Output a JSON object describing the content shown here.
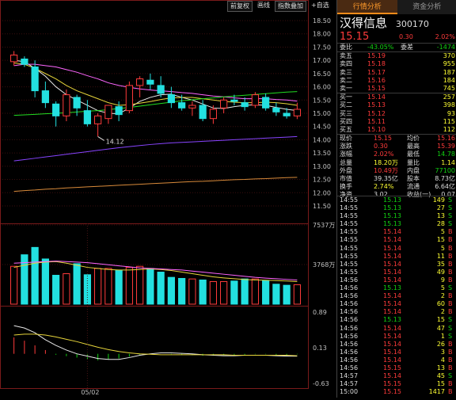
{
  "toolbar": {
    "btn_fq": "前复权",
    "btn_line": "画线",
    "btn_overlay": "指数叠加",
    "btn_fav": "+自选"
  },
  "tabs": [
    {
      "label": "行情分析"
    },
    {
      "label": "资金分析"
    }
  ],
  "stock": {
    "name": "汉得信息",
    "code": "300170",
    "price": "15.15",
    "change": "0.30",
    "pct": "2.02%"
  },
  "ratio": {
    "label1": "委比",
    "v1": "-43.05%",
    "label2": "委差",
    "v2": "-1474"
  },
  "sells": [
    {
      "label": "卖五",
      "price": "15.19",
      "vol": "370"
    },
    {
      "label": "卖四",
      "price": "15.18",
      "vol": "955"
    },
    {
      "label": "卖三",
      "price": "15.17",
      "vol": "187"
    },
    {
      "label": "卖二",
      "price": "15.16",
      "vol": "184"
    },
    {
      "label": "卖一",
      "price": "15.15",
      "vol": "745"
    }
  ],
  "buys": [
    {
      "label": "买一",
      "price": "15.14",
      "vol": "257"
    },
    {
      "label": "买二",
      "price": "15.13",
      "vol": "398"
    },
    {
      "label": "买三",
      "price": "15.12",
      "vol": "93"
    },
    {
      "label": "买四",
      "price": "15.11",
      "vol": "115"
    },
    {
      "label": "买五",
      "price": "15.10",
      "vol": "112"
    }
  ],
  "stats": [
    {
      "l1": "现价",
      "v1": "15.15",
      "c1": "red",
      "l2": "均价",
      "v2": "15.16",
      "c2": "red"
    },
    {
      "l1": "涨跌",
      "v1": "0.30",
      "c1": "red",
      "l2": "最高",
      "v2": "15.39",
      "c2": "red"
    },
    {
      "l1": "涨幅",
      "v1": "2.02%",
      "c1": "red",
      "l2": "最低",
      "v2": "14.78",
      "c2": "grn"
    },
    {
      "l1": "总量",
      "v1": "18.20万",
      "c1": "yel",
      "l2": "量比",
      "v2": "1.14",
      "c2": "yel"
    },
    {
      "l1": "外盘",
      "v1": "10.49万",
      "c1": "red",
      "l2": "内盘",
      "v2": "77100",
      "c2": "grn"
    },
    {
      "l1": "市值",
      "v1": "39.35亿",
      "c1": "wht",
      "l2": "股本",
      "v2": "8.73亿",
      "c2": "wht"
    },
    {
      "l1": "换手",
      "v1": "2.74%",
      "c1": "yel",
      "l2": "流通",
      "v2": "6.64亿",
      "c2": "wht"
    },
    {
      "l1": "净资",
      "v1": "3.02",
      "c1": "wht",
      "l2": "收益(一)",
      "v2": "0.07",
      "c2": "wht"
    }
  ],
  "ticks": [
    {
      "t": "14:55",
      "p": "15.13",
      "pc": "grn",
      "v": "149",
      "d": "S"
    },
    {
      "t": "14:55",
      "p": "15.13",
      "pc": "grn",
      "v": "27",
      "d": "S"
    },
    {
      "t": "14:55",
      "p": "15.13",
      "pc": "grn",
      "v": "13",
      "d": "S"
    },
    {
      "t": "14:55",
      "p": "15.13",
      "pc": "grn",
      "v": "28",
      "d": "S"
    },
    {
      "t": "14:55",
      "p": "15.14",
      "pc": "red",
      "v": "5",
      "d": "B"
    },
    {
      "t": "14:55",
      "p": "15.14",
      "pc": "red",
      "v": "15",
      "d": "B"
    },
    {
      "t": "14:55",
      "p": "15.14",
      "pc": "red",
      "v": "5",
      "d": "B"
    },
    {
      "t": "14:55",
      "p": "15.14",
      "pc": "red",
      "v": "11",
      "d": "B"
    },
    {
      "t": "14:55",
      "p": "15.14",
      "pc": "red",
      "v": "35",
      "d": "B"
    },
    {
      "t": "14:55",
      "p": "15.14",
      "pc": "red",
      "v": "49",
      "d": "B"
    },
    {
      "t": "14:56",
      "p": "15.14",
      "pc": "red",
      "v": "9",
      "d": "B"
    },
    {
      "t": "14:56",
      "p": "15.13",
      "pc": "grn",
      "v": "5",
      "d": "S"
    },
    {
      "t": "14:56",
      "p": "15.14",
      "pc": "red",
      "v": "2",
      "d": "B"
    },
    {
      "t": "14:56",
      "p": "15.14",
      "pc": "red",
      "v": "60",
      "d": "B"
    },
    {
      "t": "14:56",
      "p": "15.14",
      "pc": "red",
      "v": "2",
      "d": "B"
    },
    {
      "t": "14:56",
      "p": "15.13",
      "pc": "grn",
      "v": "15",
      "d": "S"
    },
    {
      "t": "14:56",
      "p": "15.14",
      "pc": "red",
      "v": "47",
      "d": "S"
    },
    {
      "t": "14:56",
      "p": "15.14",
      "pc": "red",
      "v": "1",
      "d": "S"
    },
    {
      "t": "14:56",
      "p": "15.14",
      "pc": "red",
      "v": "26",
      "d": "B"
    },
    {
      "t": "14:56",
      "p": "15.14",
      "pc": "red",
      "v": "3",
      "d": "B"
    },
    {
      "t": "14:56",
      "p": "15.14",
      "pc": "red",
      "v": "4",
      "d": "B"
    },
    {
      "t": "14:56",
      "p": "15.15",
      "pc": "red",
      "v": "13",
      "d": "B"
    },
    {
      "t": "14:57",
      "p": "15.14",
      "pc": "red",
      "v": "45",
      "d": "S"
    },
    {
      "t": "14:57",
      "p": "15.15",
      "pc": "red",
      "v": "15",
      "d": "B"
    },
    {
      "t": "15:00",
      "p": "15.15",
      "pc": "red",
      "v": "1417",
      "d": "B"
    }
  ],
  "chart_data": {
    "type": "candlestick",
    "price_axis": {
      "ticks": [
        "18.50",
        "18.00",
        "17.50",
        "17.00",
        "16.50",
        "16.00",
        "15.50",
        "15.00",
        "14.50",
        "14.00",
        "13.50",
        "13.00",
        "12.50",
        "12.00",
        "11.50"
      ],
      "ylim": [
        11.2,
        18.8
      ]
    },
    "low_annotation": "14.12",
    "candles": [
      {
        "o": 16.95,
        "h": 17.35,
        "l": 16.8,
        "c": 17.2
      },
      {
        "o": 17.05,
        "h": 17.15,
        "l": 16.75,
        "c": 16.85
      },
      {
        "o": 16.75,
        "h": 17.0,
        "l": 15.6,
        "c": 15.85
      },
      {
        "o": 15.85,
        "h": 16.2,
        "l": 15.2,
        "c": 15.4
      },
      {
        "o": 15.35,
        "h": 15.45,
        "l": 14.5,
        "c": 14.9
      },
      {
        "o": 14.9,
        "h": 15.9,
        "l": 14.7,
        "c": 15.7
      },
      {
        "o": 15.6,
        "h": 15.7,
        "l": 14.9,
        "c": 15.2
      },
      {
        "o": 15.1,
        "h": 15.5,
        "l": 14.5,
        "c": 14.6
      },
      {
        "o": 14.6,
        "h": 15.0,
        "l": 14.12,
        "c": 14.9
      },
      {
        "o": 14.8,
        "h": 15.3,
        "l": 14.6,
        "c": 15.3
      },
      {
        "o": 15.25,
        "h": 15.45,
        "l": 14.7,
        "c": 14.95
      },
      {
        "o": 15.1,
        "h": 16.2,
        "l": 15.0,
        "c": 16.05
      },
      {
        "o": 16.05,
        "h": 16.4,
        "l": 15.6,
        "c": 16.3
      },
      {
        "o": 16.25,
        "h": 16.5,
        "l": 15.9,
        "c": 16.1
      },
      {
        "o": 16.05,
        "h": 16.4,
        "l": 15.6,
        "c": 15.75
      },
      {
        "o": 15.7,
        "h": 16.0,
        "l": 15.2,
        "c": 15.4
      },
      {
        "o": 15.4,
        "h": 15.7,
        "l": 15.1,
        "c": 15.2
      },
      {
        "o": 15.2,
        "h": 15.45,
        "l": 14.9,
        "c": 15.3
      },
      {
        "o": 15.3,
        "h": 15.5,
        "l": 14.7,
        "c": 14.8
      },
      {
        "o": 14.8,
        "h": 15.3,
        "l": 14.6,
        "c": 15.15
      },
      {
        "o": 15.2,
        "h": 15.6,
        "l": 15.0,
        "c": 15.5
      },
      {
        "o": 15.5,
        "h": 15.7,
        "l": 15.3,
        "c": 15.45
      },
      {
        "o": 15.4,
        "h": 15.6,
        "l": 15.1,
        "c": 15.25
      },
      {
        "o": 15.3,
        "h": 15.8,
        "l": 15.2,
        "c": 15.7
      },
      {
        "o": 15.6,
        "h": 15.75,
        "l": 15.1,
        "c": 15.2
      },
      {
        "o": 15.2,
        "h": 15.4,
        "l": 14.9,
        "c": 15.05
      },
      {
        "o": 15.0,
        "h": 15.2,
        "l": 14.8,
        "c": 14.9
      },
      {
        "o": 14.9,
        "h": 15.4,
        "l": 14.78,
        "c": 15.15
      }
    ],
    "ma_series": [
      {
        "color": "#e8e8e8",
        "values": [
          17.0,
          16.95,
          16.7,
          16.4,
          16.0,
          15.7,
          15.5,
          15.3,
          15.1,
          15.0,
          14.98,
          15.2,
          15.45,
          15.6,
          15.7,
          15.72,
          15.6,
          15.5,
          15.35,
          15.2,
          15.18,
          15.25,
          15.3,
          15.32,
          15.3,
          15.22,
          15.15,
          15.1
        ]
      },
      {
        "color": "#e6d43a",
        "values": [
          16.9,
          16.85,
          16.7,
          16.5,
          16.3,
          16.05,
          15.85,
          15.7,
          15.55,
          15.4,
          15.3,
          15.32,
          15.38,
          15.44,
          15.52,
          15.58,
          15.6,
          15.6,
          15.55,
          15.5,
          15.45,
          15.42,
          15.4,
          15.4,
          15.42,
          15.4,
          15.36,
          15.3
        ]
      },
      {
        "color": "#ff66ff",
        "values": [
          16.8,
          16.85,
          16.85,
          16.8,
          16.75,
          16.65,
          16.55,
          16.42,
          16.3,
          16.15,
          16.05,
          15.98,
          15.92,
          15.88,
          15.85,
          15.82,
          15.78,
          15.75,
          15.7,
          15.65,
          15.62,
          15.58,
          15.55,
          15.55,
          15.55,
          15.52,
          15.5,
          15.46
        ]
      },
      {
        "color": "#22dd22",
        "values": [
          14.92,
          14.94,
          14.96,
          14.98,
          15.0,
          15.02,
          15.05,
          15.08,
          15.1,
          15.14,
          15.18,
          15.22,
          15.27,
          15.32,
          15.37,
          15.42,
          15.47,
          15.51,
          15.55,
          15.58,
          15.62,
          15.65,
          15.68,
          15.71,
          15.74,
          15.77,
          15.8,
          15.82
        ]
      },
      {
        "color": "#8844ff",
        "values": [
          13.2,
          13.25,
          13.3,
          13.35,
          13.4,
          13.45,
          13.5,
          13.55,
          13.6,
          13.65,
          13.7,
          13.74,
          13.78,
          13.82,
          13.85,
          13.88,
          13.9,
          13.92,
          13.94,
          13.96,
          13.98,
          14.0,
          14.02,
          14.04,
          14.06,
          14.08,
          14.1,
          14.12
        ]
      },
      {
        "color": "#d88a3a",
        "values": [
          12.05,
          12.08,
          12.1,
          12.13,
          12.15,
          12.18,
          12.2,
          12.22,
          12.24,
          12.26,
          12.28,
          12.3,
          12.32,
          12.34,
          12.36,
          12.38,
          12.4,
          12.42,
          12.43,
          12.45,
          12.47,
          12.49,
          12.5,
          12.52,
          12.53,
          12.55,
          12.57,
          12.58
        ]
      }
    ],
    "volume_axis": {
      "ticks": [
        "7537万",
        "3768万"
      ],
      "ymax": 7537
    },
    "volume": [
      3600,
      4700,
      5400,
      4300,
      2750,
      2900,
      3850,
      2800,
      3400,
      3400,
      3200,
      3500,
      3600,
      3400,
      3050,
      2550,
      2450,
      2400,
      2300,
      2150,
      2150,
      2200,
      2400,
      2400,
      2250,
      1900,
      1800,
      1850
    ],
    "vol_ma": [
      {
        "color": "#e6d43a",
        "values": [
          3500,
          3700,
          3900,
          4000,
          4050,
          3900,
          3700,
          3500,
          3400,
          3300,
          3250,
          3250,
          3300,
          3350,
          3300,
          3200,
          3050,
          2900,
          2750,
          2600,
          2500,
          2420,
          2350,
          2300,
          2280,
          2240,
          2200,
          2150
        ]
      },
      {
        "color": "#ff66ff",
        "values": [
          3900,
          3950,
          4000,
          4050,
          4100,
          4050,
          4000,
          3950,
          3850,
          3750,
          3650,
          3550,
          3450,
          3400,
          3350,
          3300,
          3250,
          3150,
          3050,
          2950,
          2850,
          2750,
          2650,
          2550,
          2480,
          2420,
          2360,
          2300
        ]
      }
    ],
    "macd_axis": {
      "ticks": [
        "0.89",
        "0.13",
        "-0.63"
      ],
      "ylim": [
        -0.63,
        0.89
      ]
    },
    "macd": [
      0.35,
      0.28,
      0.18,
      0.08,
      -0.02,
      -0.05,
      -0.08,
      -0.12,
      -0.14,
      -0.12,
      -0.1,
      -0.06,
      -0.02,
      0.0,
      0.0,
      -0.01,
      -0.02,
      -0.03,
      -0.04,
      -0.04,
      -0.03,
      -0.02,
      -0.02,
      -0.01,
      -0.01,
      -0.02,
      -0.02,
      -0.01
    ],
    "dif": [
      0.6,
      0.55,
      0.45,
      0.3,
      0.18,
      0.08,
      0.0,
      -0.05,
      -0.1,
      -0.12,
      -0.12,
      -0.08,
      -0.03,
      0.0,
      0.02,
      0.02,
      0.01,
      0.0,
      -0.02,
      -0.03,
      -0.04,
      -0.04,
      -0.03,
      -0.03,
      -0.03,
      -0.04,
      -0.05,
      -0.05
    ],
    "dea": [
      0.4,
      0.42,
      0.42,
      0.4,
      0.36,
      0.31,
      0.26,
      0.2,
      0.14,
      0.09,
      0.05,
      0.02,
      0.0,
      -0.01,
      -0.02,
      -0.02,
      -0.02,
      -0.02,
      -0.02,
      -0.02,
      -0.02,
      -0.03,
      -0.03,
      -0.03,
      -0.03,
      -0.03,
      -0.03,
      -0.04
    ],
    "x_label": "05/02",
    "x_label_index": 7
  }
}
